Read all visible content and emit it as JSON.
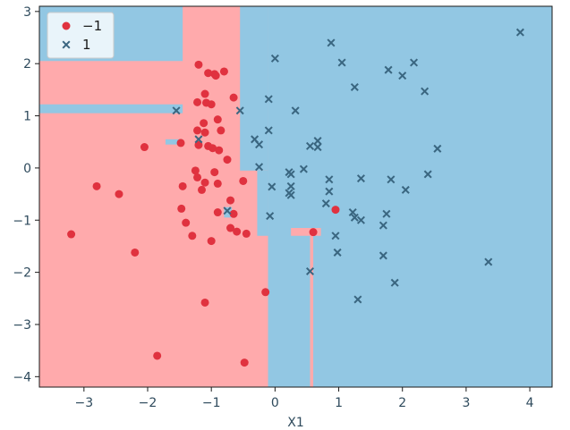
{
  "chart_data": {
    "type": "scatter",
    "title": "",
    "xlabel": "X1",
    "ylabel": "",
    "xlim": [
      -3.7,
      4.35
    ],
    "ylim": [
      -4.2,
      3.1
    ],
    "xticks": [
      -3,
      -2,
      -1,
      0,
      1,
      2,
      3,
      4
    ],
    "yticks": [
      -4,
      -3,
      -2,
      -1,
      0,
      1,
      2,
      3
    ],
    "xtick_labels": [
      "−3",
      "−2",
      "−1",
      "0",
      "1",
      "2",
      "3",
      "4"
    ],
    "ytick_labels": [
      "−4",
      "−3",
      "−2",
      "−1",
      "0",
      "1",
      "2",
      "3"
    ],
    "grid": false,
    "legend_position": "top-left",
    "colors": {
      "region_neg": "#ffaaac",
      "region_pos": "#92c7e3",
      "marker_neg": "#e0323f",
      "marker_pos": "#3a6680",
      "axes_edge": "#1a1a1a"
    },
    "decision_regions": [
      {
        "label": "-1",
        "x": [
          -3.7,
          -0.11
        ],
        "y": [
          -4.2,
          3.1
        ]
      },
      {
        "label": "1",
        "x": [
          -3.7,
          -2.55
        ],
        "y": [
          2.05,
          3.1
        ]
      },
      {
        "label": "1",
        "x": [
          -2.55,
          -1.45
        ],
        "y": [
          2.05,
          3.1
        ]
      },
      {
        "label": "1",
        "x": [
          -3.7,
          -1.45
        ],
        "y": [
          1.05,
          1.22
        ]
      },
      {
        "label": "1",
        "x": [
          -0.55,
          -0.11
        ],
        "y": [
          -0.05,
          3.1
        ]
      },
      {
        "label": "1",
        "x": [
          -0.28,
          -0.11
        ],
        "y": [
          -1.3,
          -0.05
        ]
      },
      {
        "label": "1",
        "x": [
          -1.72,
          -1.45
        ],
        "y": [
          0.45,
          0.55
        ]
      },
      {
        "label": "1",
        "x": [
          -0.8,
          -0.68
        ],
        "y": [
          -0.95,
          -0.75
        ]
      },
      {
        "label": "-1",
        "x": [
          0.55,
          0.6
        ],
        "y": [
          -4.2,
          -2.3
        ]
      },
      {
        "label": "-1",
        "x": [
          0.25,
          0.72
        ],
        "y": [
          -1.3,
          -1.15
        ]
      },
      {
        "label": "-1",
        "x": [
          0.55,
          0.6
        ],
        "y": [
          -2.3,
          -1.15
        ]
      }
    ],
    "series": [
      {
        "name": "−1",
        "marker": "circle",
        "points": [
          [
            -1.2,
            1.98
          ],
          [
            -1.05,
            1.82
          ],
          [
            -0.95,
            1.8
          ],
          [
            -0.93,
            1.77
          ],
          [
            -0.8,
            1.85
          ],
          [
            -0.65,
            1.35
          ],
          [
            -1.1,
            1.42
          ],
          [
            -1.08,
            1.25
          ],
          [
            -1.22,
            1.26
          ],
          [
            -1.0,
            1.22
          ],
          [
            -0.9,
            0.93
          ],
          [
            -1.12,
            0.86
          ],
          [
            -1.22,
            0.72
          ],
          [
            -0.85,
            0.72
          ],
          [
            -1.1,
            0.68
          ],
          [
            -1.48,
            0.48
          ],
          [
            -1.2,
            0.44
          ],
          [
            -1.05,
            0.42
          ],
          [
            -0.98,
            0.38
          ],
          [
            -0.88,
            0.34
          ],
          [
            -2.05,
            0.4
          ],
          [
            -0.75,
            0.16
          ],
          [
            -1.25,
            -0.05
          ],
          [
            -0.95,
            -0.08
          ],
          [
            -1.22,
            -0.18
          ],
          [
            -1.45,
            -0.35
          ],
          [
            -1.1,
            -0.28
          ],
          [
            -1.15,
            -0.42
          ],
          [
            -0.9,
            -0.3
          ],
          [
            -0.5,
            -0.25
          ],
          [
            -2.8,
            -0.35
          ],
          [
            -2.45,
            -0.5
          ],
          [
            -0.7,
            -0.62
          ],
          [
            -1.47,
            -0.78
          ],
          [
            -0.9,
            -0.85
          ],
          [
            -0.65,
            -0.88
          ],
          [
            -0.7,
            -1.15
          ],
          [
            -1.4,
            -1.05
          ],
          [
            -0.6,
            -1.22
          ],
          [
            -1.3,
            -1.3
          ],
          [
            -0.45,
            -1.26
          ],
          [
            -3.2,
            -1.27
          ],
          [
            -1.0,
            -1.4
          ],
          [
            -2.2,
            -1.62
          ],
          [
            -1.1,
            -2.58
          ],
          [
            -0.15,
            -2.38
          ],
          [
            -1.85,
            -3.6
          ],
          [
            -0.48,
            -3.73
          ],
          [
            0.95,
            -0.8
          ],
          [
            0.6,
            -1.23
          ]
        ]
      },
      {
        "name": "1",
        "marker": "x",
        "points": [
          [
            3.85,
            2.6
          ],
          [
            0.88,
            2.4
          ],
          [
            0.0,
            2.1
          ],
          [
            1.05,
            2.02
          ],
          [
            2.18,
            2.02
          ],
          [
            1.78,
            1.88
          ],
          [
            2.0,
            1.77
          ],
          [
            1.25,
            1.55
          ],
          [
            2.35,
            1.47
          ],
          [
            -0.1,
            1.32
          ],
          [
            -0.55,
            1.1
          ],
          [
            -1.55,
            1.1
          ],
          [
            0.32,
            1.1
          ],
          [
            -0.1,
            0.72
          ],
          [
            -0.32,
            0.55
          ],
          [
            0.67,
            0.52
          ],
          [
            0.55,
            0.42
          ],
          [
            0.67,
            0.4
          ],
          [
            -0.25,
            0.45
          ],
          [
            -1.2,
            0.55
          ],
          [
            2.55,
            0.37
          ],
          [
            -0.25,
            0.02
          ],
          [
            0.45,
            -0.02
          ],
          [
            0.22,
            -0.08
          ],
          [
            0.25,
            -0.12
          ],
          [
            0.85,
            -0.22
          ],
          [
            1.82,
            -0.22
          ],
          [
            1.35,
            -0.2
          ],
          [
            2.4,
            -0.12
          ],
          [
            -0.05,
            -0.36
          ],
          [
            0.25,
            -0.35
          ],
          [
            0.22,
            -0.48
          ],
          [
            0.25,
            -0.52
          ],
          [
            0.85,
            -0.45
          ],
          [
            2.05,
            -0.42
          ],
          [
            0.8,
            -0.68
          ],
          [
            1.22,
            -0.85
          ],
          [
            1.25,
            -0.95
          ],
          [
            1.35,
            -1.0
          ],
          [
            1.75,
            -0.88
          ],
          [
            -0.08,
            -0.92
          ],
          [
            -0.75,
            -0.82
          ],
          [
            1.7,
            -1.1
          ],
          [
            0.95,
            -1.3
          ],
          [
            0.98,
            -1.62
          ],
          [
            1.7,
            -1.68
          ],
          [
            3.35,
            -1.8
          ],
          [
            0.55,
            -1.98
          ],
          [
            1.88,
            -2.2
          ],
          [
            1.3,
            -2.52
          ]
        ]
      }
    ]
  }
}
